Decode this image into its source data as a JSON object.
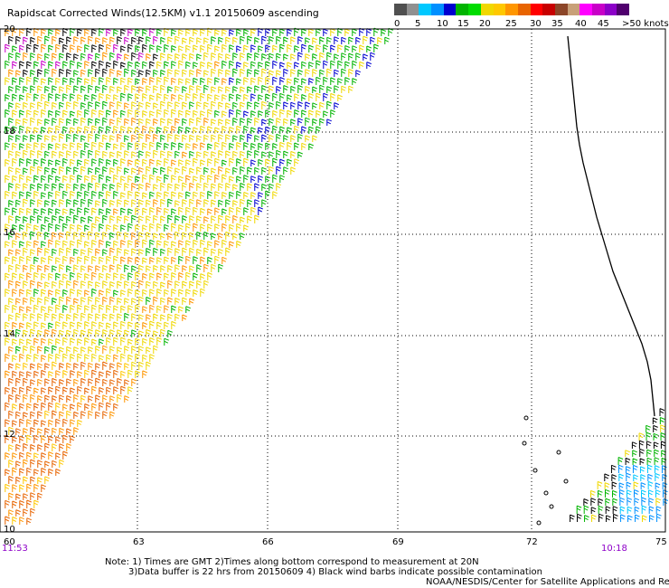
{
  "title": "Rapidscat Corrected Winds(12.5KM) v1.1 20150609 ascending",
  "legend": {
    "colors": [
      "#505050",
      "#909090",
      "#00c8ff",
      "#0090ff",
      "#0000d0",
      "#00b400",
      "#00dc00",
      "#f0d800",
      "#ffc800",
      "#ff9600",
      "#e86400",
      "#ff0000",
      "#c80000",
      "#8c4628",
      "#c8a078",
      "#ff00ff",
      "#c800c8",
      "#8c00c8",
      "#50006e"
    ],
    "labels": [
      "0",
      "5",
      "10",
      "15",
      "20",
      "25",
      "30",
      "35",
      "40",
      "45",
      ">50 knots"
    ]
  },
  "axes": {
    "lat_labels": [
      "20",
      "18",
      "16",
      "14",
      "12",
      "10"
    ],
    "lon_labels": [
      "60",
      "63",
      "66",
      "69",
      "72",
      "75"
    ]
  },
  "times": {
    "left": "11:53",
    "right": "10:18"
  },
  "notes": {
    "line1": "Note: 1) Times are GMT 2)Times along bottom correspond to measurement at 20N",
    "line2": "3)Data buffer is 22 hrs from 20150609 4) Black wind barbs indicate possible contamination",
    "line3": "NOAA/NESDIS/Center for Satellite Applications and Research"
  }
}
